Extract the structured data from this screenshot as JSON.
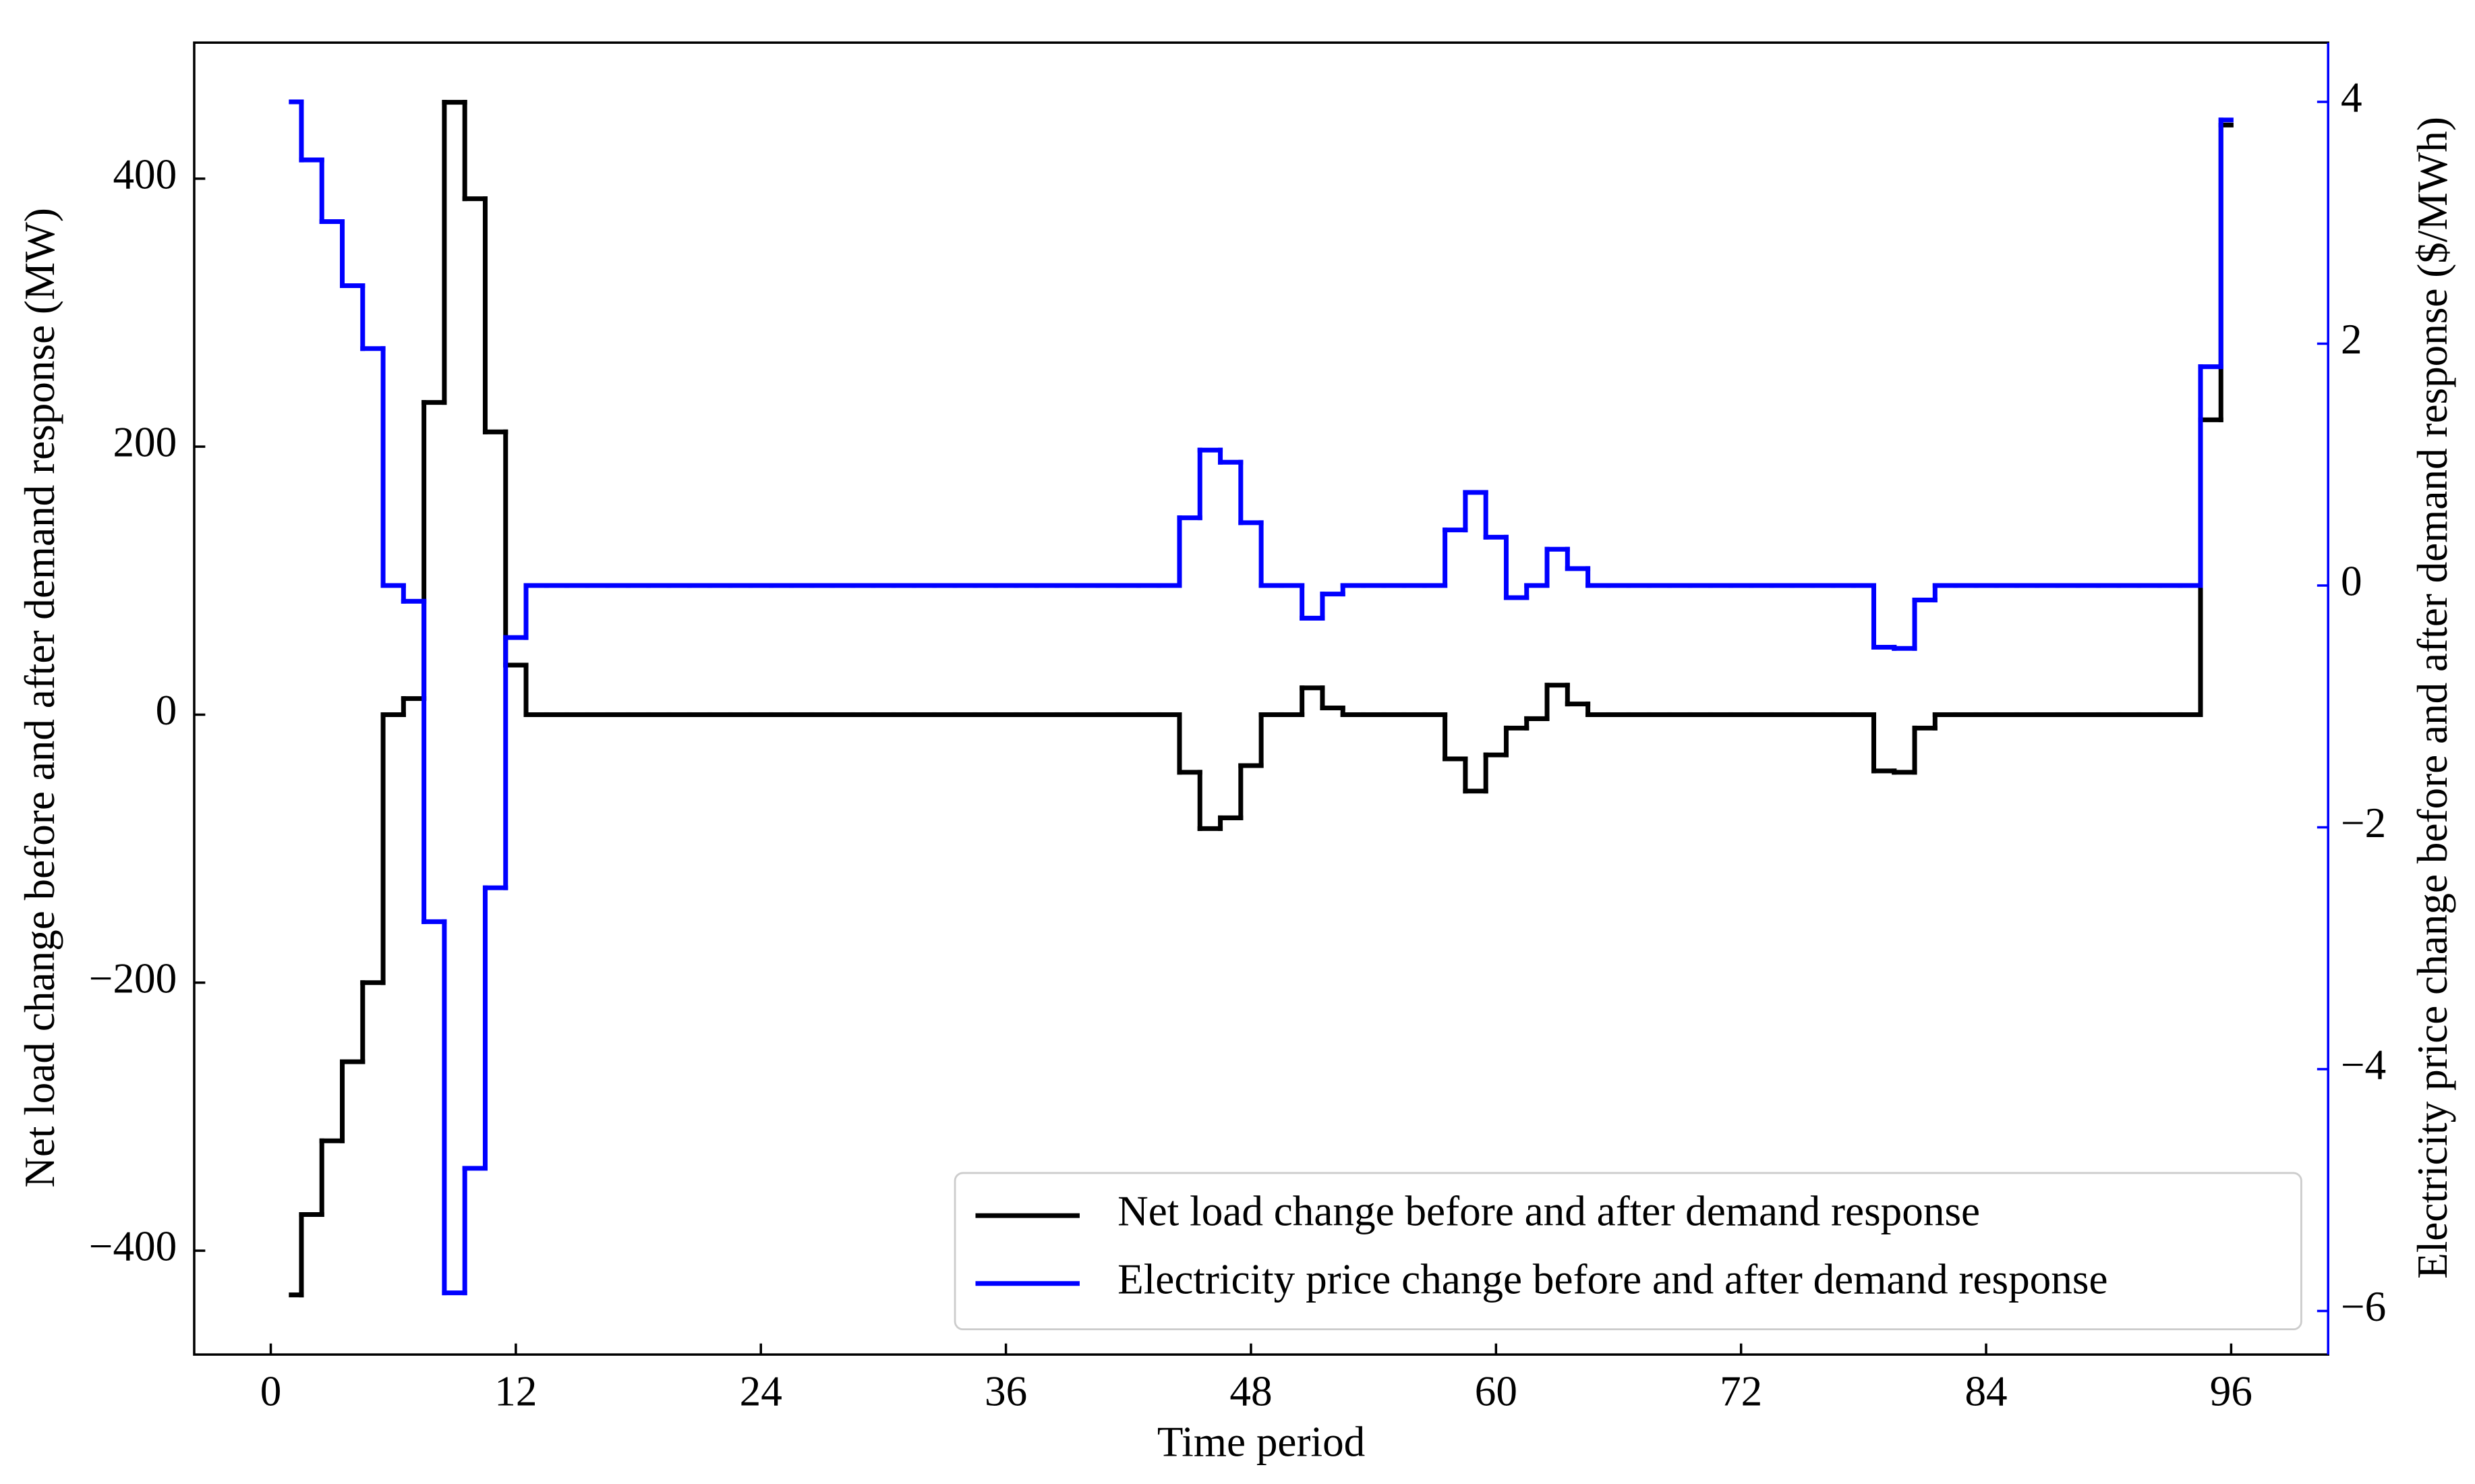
{
  "chart_data": {
    "type": "line",
    "step": "mid",
    "xlabel": "Time period",
    "ylabel": "Net load change before and after demand response (MW)",
    "y2label": "Electricity price change before and after demand response ($/MWh)",
    "x": [
      1,
      2,
      3,
      4,
      5,
      6,
      7,
      8,
      9,
      10,
      11,
      12,
      13,
      14,
      15,
      16,
      17,
      18,
      19,
      20,
      21,
      22,
      23,
      24,
      25,
      26,
      27,
      28,
      29,
      30,
      31,
      32,
      33,
      34,
      35,
      36,
      37,
      38,
      39,
      40,
      41,
      42,
      43,
      44,
      45,
      46,
      47,
      48,
      49,
      50,
      51,
      52,
      53,
      54,
      55,
      56,
      57,
      58,
      59,
      60,
      61,
      62,
      63,
      64,
      65,
      66,
      67,
      68,
      69,
      70,
      71,
      72,
      73,
      74,
      75,
      76,
      77,
      78,
      79,
      80,
      81,
      82,
      83,
      84,
      85,
      86,
      87,
      88,
      89,
      90,
      91,
      92,
      93,
      94,
      95,
      96
    ],
    "series": [
      {
        "name": "Net load change before and after demand response",
        "color": "#000000",
        "values": [
          -433,
          -373,
          -318,
          -259,
          -200,
          0,
          12,
          233,
          457,
          385,
          211,
          37,
          0,
          0,
          0,
          0,
          0,
          0,
          0,
          0,
          0,
          0,
          0,
          0,
          0,
          0,
          0,
          0,
          0,
          0,
          0,
          0,
          0,
          0,
          0,
          0,
          0,
          0,
          0,
          0,
          0,
          0,
          0,
          0,
          -43,
          -85,
          -77,
          -38,
          0,
          0,
          20,
          5,
          0,
          0,
          0,
          0,
          0,
          -33,
          -57,
          -30,
          -10,
          -3,
          22,
          8,
          0,
          0,
          0,
          0,
          0,
          0,
          0,
          0,
          0,
          0,
          0,
          0,
          0,
          0,
          -42,
          -43,
          -10,
          0,
          0,
          0,
          0,
          0,
          0,
          0,
          0,
          0,
          0,
          0,
          0,
          0,
          220,
          440
        ]
      },
      {
        "name": "Electricity price change before and after demand response",
        "color": "#0000ff",
        "axis": "y2",
        "values": [
          4.0,
          3.52,
          3.01,
          2.48,
          1.96,
          0,
          -0.13,
          -2.78,
          -5.85,
          -4.82,
          -2.5,
          -0.43,
          0,
          0,
          0,
          0,
          0,
          0,
          0,
          0,
          0,
          0,
          0,
          0,
          0,
          0,
          0,
          0,
          0,
          0,
          0,
          0,
          0,
          0,
          0,
          0,
          0,
          0,
          0,
          0,
          0,
          0,
          0,
          0,
          0.56,
          1.12,
          1.02,
          0.52,
          0,
          0,
          -0.27,
          -0.07,
          0,
          0,
          0,
          0,
          0,
          0.46,
          0.77,
          0.4,
          -0.1,
          0,
          0.3,
          0.14,
          0,
          0,
          0,
          0,
          0,
          0,
          0,
          0,
          0,
          0,
          0,
          0,
          0,
          0,
          -0.51,
          -0.52,
          -0.12,
          0,
          0,
          0,
          0,
          0,
          0,
          0,
          0,
          0,
          0,
          0,
          0,
          0,
          1.81,
          3.85
        ]
      }
    ],
    "xlim": [
      -3.75,
      100.75
    ],
    "xticks": [
      0,
      12,
      24,
      36,
      48,
      60,
      72,
      84,
      96
    ],
    "ylim": [
      -477.5,
      501.5
    ],
    "yticks": [
      {
        "value": -400,
        "label": "−400"
      },
      {
        "value": -200,
        "label": "−200"
      },
      0,
      200,
      400
    ],
    "y2lim": [
      -6.36,
      4.49
    ],
    "y2ticks": [
      {
        "value": -6,
        "label": "−6"
      },
      {
        "value": -4,
        "label": "−4"
      },
      {
        "value": -2,
        "label": "−2"
      },
      0,
      2,
      4
    ],
    "y2color": "#0000ff",
    "legend": "lower right"
  }
}
